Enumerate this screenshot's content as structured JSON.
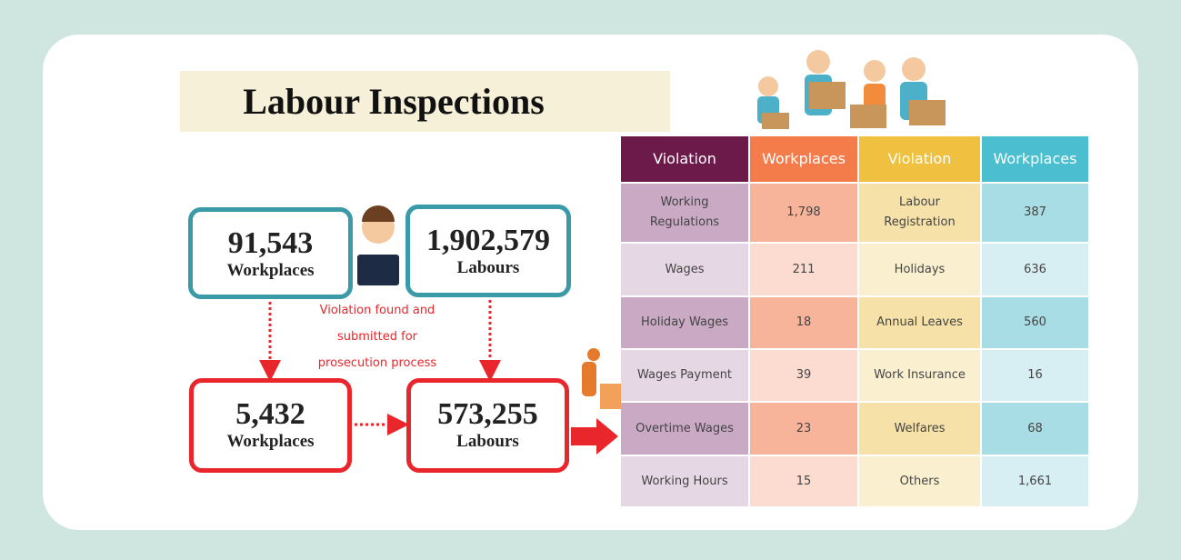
{
  "title": "Labour Inspections",
  "boxes": [
    {
      "number": "91,543",
      "label": "Workplaces"
    },
    {
      "number": "1,902,579",
      "label": "Labours"
    },
    {
      "number": "5,432",
      "label": "Workplaces"
    },
    {
      "number": "573,255",
      "label": "Labours"
    }
  ],
  "note": [
    "Violation found and",
    "submitted for",
    "prosecution process"
  ],
  "table": {
    "header": [
      "Violation",
      "Workplaces",
      "Violation",
      "Workplaces"
    ],
    "rows": [
      [
        "Working Regulations",
        "1,798",
        "Labour Registration",
        "387"
      ],
      [
        "Wages",
        "211",
        "Holidays",
        "636"
      ],
      [
        "Holiday Wages",
        "18",
        "Annual Leaves",
        "560"
      ],
      [
        "Wages Payment",
        "39",
        "Work Insurance",
        "16"
      ],
      [
        "Overtime Wages",
        "23",
        "Welfares",
        "68"
      ],
      [
        "Working Hours",
        "15",
        "Others",
        "1,661"
      ]
    ]
  }
}
